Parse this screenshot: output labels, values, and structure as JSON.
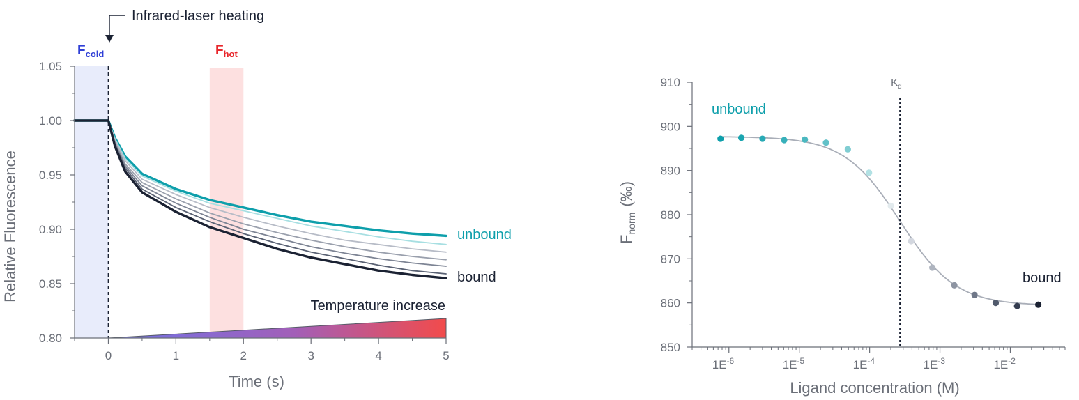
{
  "chart_data": [
    {
      "type": "line",
      "xlabel": "Time (s)",
      "ylabel": "Relative Fluorescence",
      "xlim": [
        -0.5,
        5
      ],
      "ylim": [
        0.8,
        1.05
      ],
      "x_ticks": [
        0,
        1,
        2,
        3,
        4,
        5
      ],
      "y_ticks": [
        0.8,
        0.85,
        0.9,
        0.95,
        1.0,
        1.05
      ],
      "x_tick_labels": [
        "0",
        "1",
        "2",
        "3",
        "4",
        "5"
      ],
      "y_tick_labels": [
        "0.80",
        "0.85",
        "0.90",
        "0.95",
        "1.00",
        "1.05"
      ],
      "annotations": {
        "laser": "Infrared-laser heating",
        "f_cold": "F",
        "f_cold_sub": "cold",
        "f_hot": "F",
        "f_hot_sub": "hot",
        "temperature": "Temperature increase",
        "unbound": "unbound",
        "bound": "bound"
      },
      "regions": {
        "cold": {
          "x": [
            -0.5,
            0
          ],
          "color": "#e8ecfb"
        },
        "hot": {
          "x": [
            1.5,
            2.0
          ],
          "color": "#fde0e0"
        }
      },
      "laser_on_x": 0,
      "x": [
        -0.5,
        0,
        0.1,
        0.25,
        0.5,
        1,
        1.5,
        2,
        2.5,
        3,
        3.5,
        4,
        4.5,
        5
      ],
      "series": [
        {
          "values": [
            1.0,
            1.0,
            0.984,
            0.967,
            0.951,
            0.937,
            0.927,
            0.92,
            0.913,
            0.907,
            0.903,
            0.899,
            0.896,
            0.894
          ],
          "color": "#0e9fab"
        },
        {
          "values": [
            1.0,
            1.0,
            0.983,
            0.965,
            0.949,
            0.935,
            0.924,
            0.917,
            0.91,
            0.903,
            0.898,
            0.893,
            0.889,
            0.886
          ],
          "color": "#a7dfe2"
        },
        {
          "values": [
            1.0,
            1.0,
            0.982,
            0.963,
            0.946,
            0.932,
            0.92,
            0.911,
            0.903,
            0.896,
            0.89,
            0.886,
            0.882,
            0.879
          ],
          "color": "#b7bcc7"
        },
        {
          "values": [
            1.0,
            1.0,
            0.98,
            0.96,
            0.943,
            0.928,
            0.915,
            0.905,
            0.897,
            0.89,
            0.884,
            0.879,
            0.875,
            0.872
          ],
          "color": "#9aa0ad"
        },
        {
          "values": [
            1.0,
            1.0,
            0.979,
            0.958,
            0.94,
            0.924,
            0.911,
            0.9,
            0.892,
            0.884,
            0.878,
            0.873,
            0.869,
            0.866
          ],
          "color": "#7d8494"
        },
        {
          "values": [
            1.0,
            1.0,
            0.978,
            0.956,
            0.937,
            0.92,
            0.907,
            0.896,
            0.887,
            0.879,
            0.873,
            0.867,
            0.862,
            0.859
          ],
          "color": "#5a6274"
        },
        {
          "values": [
            1.0,
            1.0,
            0.976,
            0.953,
            0.934,
            0.916,
            0.902,
            0.892,
            0.882,
            0.874,
            0.868,
            0.862,
            0.858,
            0.855
          ],
          "color": "#1b2233"
        }
      ]
    },
    {
      "type": "scatter",
      "xlabel": "Ligand concentration (M)",
      "ylabel": "F",
      "ylabel_sub": "norm",
      "ylabel_unit": "(‰)",
      "x_scale": "log",
      "xlim": [
        3e-07,
        0.06
      ],
      "ylim": [
        850,
        910
      ],
      "y_ticks": [
        850,
        860,
        870,
        880,
        890,
        900,
        910
      ],
      "y_tick_labels": [
        "850",
        "860",
        "870",
        "880",
        "890",
        "900",
        "910"
      ],
      "x_ticks": [
        1e-06,
        1e-05,
        0.0001,
        0.001,
        0.01
      ],
      "x_tick_base": "1E",
      "x_tick_exponents": [
        "-6",
        "-5",
        "-4",
        "-3",
        "-2"
      ],
      "kd_label": "K",
      "kd_sub": "d",
      "kd_x": 0.00027,
      "annotations": {
        "unbound": "unbound",
        "bound": "bound"
      },
      "points": [
        {
          "x": 7.6e-07,
          "y": 897.2,
          "color": "#0e9fab"
        },
        {
          "x": 1.5e-06,
          "y": 897.4,
          "color": "#1aa5b0"
        },
        {
          "x": 3e-06,
          "y": 897.2,
          "color": "#28aab5"
        },
        {
          "x": 6.1e-06,
          "y": 896.9,
          "color": "#37b0ba"
        },
        {
          "x": 1.2e-05,
          "y": 897.0,
          "color": "#4bb8c0"
        },
        {
          "x": 2.4e-05,
          "y": 896.3,
          "color": "#62c1c8"
        },
        {
          "x": 4.9e-05,
          "y": 894.8,
          "color": "#80cdd2"
        },
        {
          "x": 9.8e-05,
          "y": 889.5,
          "color": "#b2e1e4"
        },
        {
          "x": 0.0002,
          "y": 882.0,
          "color": "#e3ebee"
        },
        {
          "x": 0.00039,
          "y": 874.0,
          "color": "#d3d7df"
        },
        {
          "x": 0.00078,
          "y": 868.0,
          "color": "#aeb4bf"
        },
        {
          "x": 0.0016,
          "y": 864.0,
          "color": "#8d94a2"
        },
        {
          "x": 0.0031,
          "y": 861.8,
          "color": "#6f7788"
        },
        {
          "x": 0.0062,
          "y": 860.0,
          "color": "#515a6c"
        },
        {
          "x": 0.0125,
          "y": 859.3,
          "color": "#353d50"
        },
        {
          "x": 0.025,
          "y": 859.6,
          "color": "#1b2233"
        }
      ],
      "fit": {
        "top": 897.7,
        "bottom": 859.4,
        "kd": 0.00027,
        "hill": 1.1,
        "color": "#a9aeb8"
      }
    }
  ]
}
